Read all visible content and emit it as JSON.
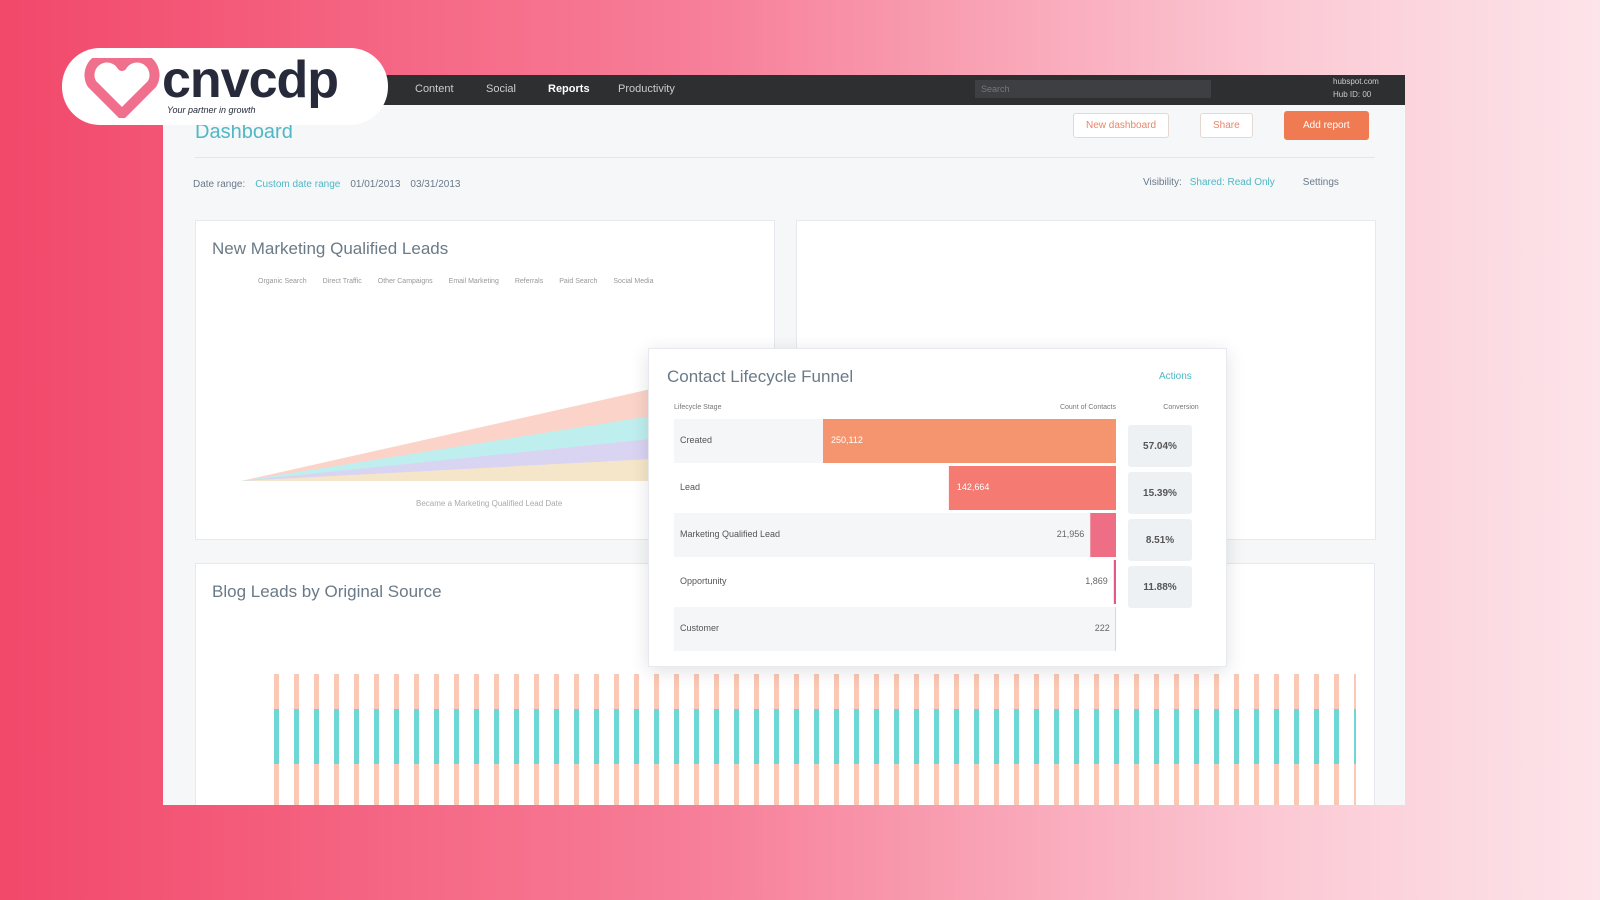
{
  "logo": {
    "name": "cnvcdp",
    "tagline": "Your partner in growth"
  },
  "nav": {
    "items": [
      "Content",
      "Social",
      "Reports",
      "Productivity"
    ],
    "search": "Search",
    "account": "hubspot.com",
    "hub_id": "Hub ID: 00"
  },
  "header": {
    "title": "Dashboard",
    "buttons": [
      "New dashboard",
      "Share",
      "Add report"
    ]
  },
  "filters": {
    "date_label": "Date range:",
    "date_range": "Custom date range",
    "start": "01/01/2013",
    "end": "03/31/2013",
    "visibility_label": "Visibility:",
    "visibility": "Shared: Read Only",
    "settings": "Settings"
  },
  "mql_card": {
    "title": "New Marketing Qualified Leads",
    "legend": [
      "Organic Search",
      "Direct Traffic",
      "Other Campaigns",
      "Email Marketing",
      "Referrals",
      "Paid Search",
      "Social Media"
    ],
    "x_title": "Became a Marketing Qualified Lead Date"
  },
  "blog_card": {
    "title": "Blog Leads by Original Source"
  },
  "chart_data": {
    "type": "funnel",
    "title": "Contact Lifecycle Funnel",
    "actions": "Actions",
    "headers": [
      "Lifecycle Stage",
      "Count of Contacts",
      "Conversion"
    ],
    "categories": [
      "Created",
      "Lead",
      "Marketing Qualified Lead",
      "Opportunity",
      "Customer"
    ],
    "values": [
      250112,
      142664,
      21956,
      1869,
      222
    ],
    "value_labels": [
      "250,112",
      "142,664",
      "21,956",
      "1,869",
      "222"
    ],
    "conversions": [
      57.04,
      15.39,
      8.51,
      11.88
    ],
    "conversion_labels": [
      "57.04%",
      "15.39%",
      "8.51%",
      "11.88%"
    ],
    "colors": [
      "#f4956f",
      "#f47a72",
      "#ee6e85",
      "#e35a84",
      "#e04e80"
    ]
  }
}
